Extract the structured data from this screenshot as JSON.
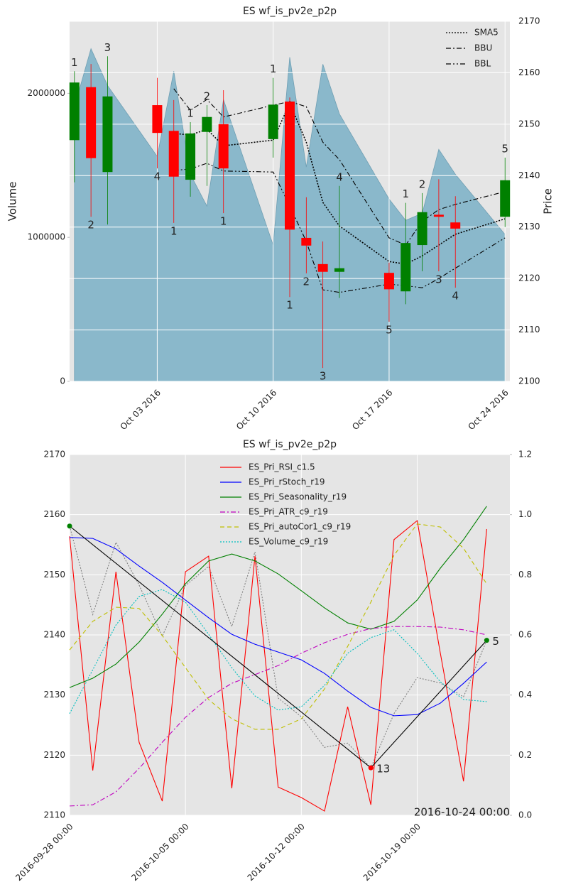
{
  "chart_data": [
    {
      "type": "candlestick",
      "title": "ES wf_is_pv2e_p2p",
      "ylabel": "Volume",
      "y2label": "Price",
      "x": [
        "2016-09-28",
        "2016-09-29",
        "2016-09-30",
        "2016-10-03",
        "2016-10-04",
        "2016-10-05",
        "2016-10-06",
        "2016-10-07",
        "2016-10-10",
        "2016-10-11",
        "2016-10-12",
        "2016-10-13",
        "2016-10-14",
        "2016-10-17",
        "2016-10-18",
        "2016-10-19",
        "2016-10-20",
        "2016-10-21",
        "2016-10-24"
      ],
      "xlim": [
        "2016-09-27T17:00:00Z",
        "2016-10-24T07:00:00Z"
      ],
      "xticks": [
        {
          "value": "2016-10-03",
          "label": "Oct 03 2016"
        },
        {
          "value": "2016-10-10",
          "label": "Oct 10 2016"
        },
        {
          "value": "2016-10-17",
          "label": "Oct 17 2016"
        },
        {
          "value": "2016-10-24",
          "label": "Oct 24 2016"
        }
      ],
      "ylim": [
        0,
        2500000
      ],
      "yticks": [
        0,
        1000000,
        2000000
      ],
      "y2lim": [
        2100,
        2170
      ],
      "y2ticks": [
        2100,
        2110,
        2120,
        2130,
        2140,
        2150,
        2160,
        2170
      ],
      "grid": true,
      "grid_axis": "y2",
      "legend": "upper right",
      "candles": {
        "up_color": "#008000",
        "down_color": "#ff0000",
        "open": [
          2146.9,
          2157.2,
          2140.7,
          2153.7,
          2148.7,
          2139.2,
          2148.5,
          2150.0,
          2147.1,
          2154.4,
          2127.9,
          2122.8,
          2121.3,
          2121.1,
          2117.5,
          2126.5,
          2132.4,
          2130.9,
          2132.0
        ],
        "high": [
          2160.3,
          2161.7,
          2163.2,
          2159.0,
          2154.7,
          2150.4,
          2153.7,
          2156.6,
          2159.0,
          2155.2,
          2135.8,
          2127.2,
          2138.0,
          2123.1,
          2134.7,
          2136.6,
          2139.3,
          2136.0,
          2143.5
        ],
        "low": [
          2138.7,
          2132.0,
          2130.5,
          2141.4,
          2130.8,
          2135.9,
          2138.0,
          2132.7,
          2143.5,
          2116.4,
          2121.0,
          2102.6,
          2116.2,
          2111.6,
          2115.0,
          2121.4,
          2121.4,
          2118.2,
          2130.0
        ],
        "close": [
          2158.1,
          2143.4,
          2155.4,
          2148.3,
          2139.8,
          2148.2,
          2151.4,
          2141.4,
          2153.8,
          2129.5,
          2126.4,
          2121.3,
          2122.0,
          2117.9,
          2126.9,
          2132.9,
          2132.0,
          2129.7,
          2139.1
        ],
        "labels": [
          "1",
          "2",
          "3",
          "4",
          "1",
          "1",
          "2",
          "1",
          "1",
          "1",
          "2",
          "3",
          "4",
          "5",
          "1",
          "2",
          "3",
          "4",
          "5"
        ]
      },
      "series": [
        {
          "kind": "area",
          "axis": "y",
          "color": "#8ab8cb",
          "values": [
            1906000,
            2310000,
            2054000,
            1562000,
            2153000,
            1438000,
            1217000,
            1956000,
            946000,
            2251000,
            1488000,
            2202000,
            1857000,
            1266000,
            1118000,
            1167000,
            1611000,
            1438000,
            1020000
          ]
        },
        {
          "name": "SMA5",
          "axis": "y2",
          "color": "#000000",
          "dash": "dotted",
          "values": [
            null,
            null,
            null,
            null,
            2148.2,
            2147.9,
            2149.0,
            2145.8,
            2146.9,
            2154.1,
            2146.5,
            2134.8,
            2130.2,
            2123.3,
            2122.8,
            2124.4,
            2126.5,
            2128.6,
            2131.6
          ]
        },
        {
          "name": "BBU",
          "axis": "y2",
          "color": "#000000",
          "dash": "dashdot",
          "values": [
            null,
            null,
            null,
            null,
            2156.9,
            2152.7,
            2154.8,
            2151.4,
            2153.7,
            2154.4,
            2153.4,
            2146.5,
            2143.1,
            2127.9,
            2126.5,
            2131.1,
            2133.4,
            2134.4,
            2136.9
          ]
        },
        {
          "name": "BBL",
          "axis": "y2",
          "color": "#000000",
          "dash": "dashdotdot",
          "values": [
            null,
            null,
            null,
            null,
            2141.0,
            2141.3,
            2142.4,
            2140.9,
            2140.7,
            2134.1,
            2127.2,
            2117.8,
            2117.3,
            2118.9,
            2118.6,
            2118.2,
            2120.0,
            2122.0,
            2127.9
          ]
        }
      ]
    },
    {
      "type": "line",
      "title": "ES wf_is_pv2e_p2p",
      "x": [
        0,
        1,
        2,
        3,
        4,
        5,
        6,
        7,
        8,
        9,
        10,
        11,
        12,
        13,
        14,
        15,
        16,
        17,
        18
      ],
      "xlim": [
        0,
        19
      ],
      "xticks": [
        {
          "value": 0,
          "label": "2016-09-28 00:00"
        },
        {
          "value": 5,
          "label": "2016-10-05 00:00"
        },
        {
          "value": 10,
          "label": "2016-10-12 00:00"
        },
        {
          "value": 15,
          "label": "2016-10-19 00:00"
        }
      ],
      "ylim": [
        2110,
        2170
      ],
      "yticks": [
        2110,
        2120,
        2130,
        2140,
        2150,
        2160,
        2170
      ],
      "y2lim": [
        0,
        1.2
      ],
      "y2ticks": [
        {
          "value": 0,
          "label": "0.0"
        },
        0.2,
        0.4,
        0.6,
        0.8,
        {
          "value": 1,
          "label": "1.0"
        },
        1.2
      ],
      "grid": true,
      "grid_axis": "y",
      "legend": "upper center",
      "annotation": "2016-10-24 00:00",
      "series": [
        {
          "axis": "y",
          "color": "#808080",
          "dash": "dotted",
          "values": [
            2158.1,
            2143.4,
            2155.4,
            2148.3,
            2139.8,
            2148.2,
            2151.4,
            2141.4,
            2153.8,
            2129.5,
            2126.4,
            2121.3,
            2122.0,
            2117.9,
            2126.9,
            2132.9,
            2132.0,
            2129.7,
            2139.1
          ]
        },
        {
          "name": "ES_Pri_RSI_c1.5",
          "axis": "y2",
          "color": "#ff0000",
          "values": [
            0.928,
            0.149,
            0.81,
            0.243,
            0.047,
            0.81,
            0.862,
            0.09,
            0.862,
            0.094,
            0.059,
            0.014,
            0.361,
            0.035,
            0.917,
            0.98,
            0.539,
            0.113,
            0.952
          ]
        },
        {
          "name": "ES_Pri_rStoch_r19",
          "axis": "y2",
          "color": "#0000ff",
          "values": [
            0.924,
            0.921,
            0.886,
            0.829,
            0.775,
            0.716,
            0.657,
            0.602,
            0.569,
            0.543,
            0.517,
            0.472,
            0.413,
            0.359,
            0.331,
            0.335,
            0.373,
            0.439,
            0.51
          ]
        },
        {
          "name": "ES_Pri_Seasonality_r19",
          "axis": "y2",
          "color": "#008000",
          "values": [
            0.425,
            0.456,
            0.503,
            0.576,
            0.669,
            0.77,
            0.846,
            0.869,
            0.846,
            0.803,
            0.747,
            0.69,
            0.64,
            0.619,
            0.645,
            0.716,
            0.822,
            0.917,
            1.028
          ]
        },
        {
          "name": "ES_Pri_ATR_c9_r19",
          "axis": "y2",
          "color": "#bf00bf",
          "dash": "dashdot",
          "values": [
            0.031,
            0.035,
            0.078,
            0.156,
            0.243,
            0.326,
            0.392,
            0.439,
            0.468,
            0.498,
            0.539,
            0.574,
            0.602,
            0.621,
            0.628,
            0.628,
            0.626,
            0.617,
            0.6
          ]
        },
        {
          "name": "ES_Pri_autoCor1_c9_r19",
          "axis": "y2",
          "color": "#bfbf00",
          "dash": "dashed",
          "values": [
            0.55,
            0.645,
            0.692,
            0.688,
            0.598,
            0.491,
            0.385,
            0.321,
            0.286,
            0.286,
            0.321,
            0.42,
            0.562,
            0.709,
            0.865,
            0.969,
            0.959,
            0.888,
            0.77
          ]
        },
        {
          "name": "ES_Volume_c9_r19",
          "axis": "y2",
          "color": "#00bfbf",
          "dash": "dotted",
          "values": [
            0.338,
            0.484,
            0.633,
            0.728,
            0.751,
            0.709,
            0.602,
            0.491,
            0.397,
            0.35,
            0.361,
            0.432,
            0.539,
            0.591,
            0.617,
            0.539,
            0.444,
            0.385,
            0.378
          ]
        }
      ],
      "pivots": {
        "color": "#000000",
        "x": [
          0,
          13,
          18
        ],
        "values": [
          2158.1,
          2117.9,
          2139.1
        ],
        "marker_colors": [
          "#008000",
          "#ff0000",
          "#008000"
        ],
        "labels": [
          null,
          "13",
          "5"
        ]
      }
    }
  ]
}
